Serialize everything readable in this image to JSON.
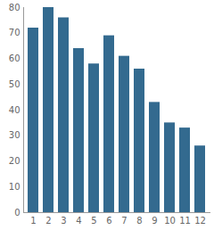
{
  "chart_data": {
    "type": "bar",
    "categories": [
      "1",
      "2",
      "3",
      "4",
      "5",
      "6",
      "7",
      "8",
      "9",
      "10",
      "11",
      "12"
    ],
    "values": [
      72,
      80,
      76,
      64,
      58,
      69,
      61,
      56,
      43,
      35,
      33,
      26
    ],
    "color": "#336a8f",
    "ylim": [
      0,
      80
    ],
    "yticks": [
      0,
      10,
      20,
      30,
      40,
      50,
      60,
      70,
      80
    ],
    "grid": false
  }
}
